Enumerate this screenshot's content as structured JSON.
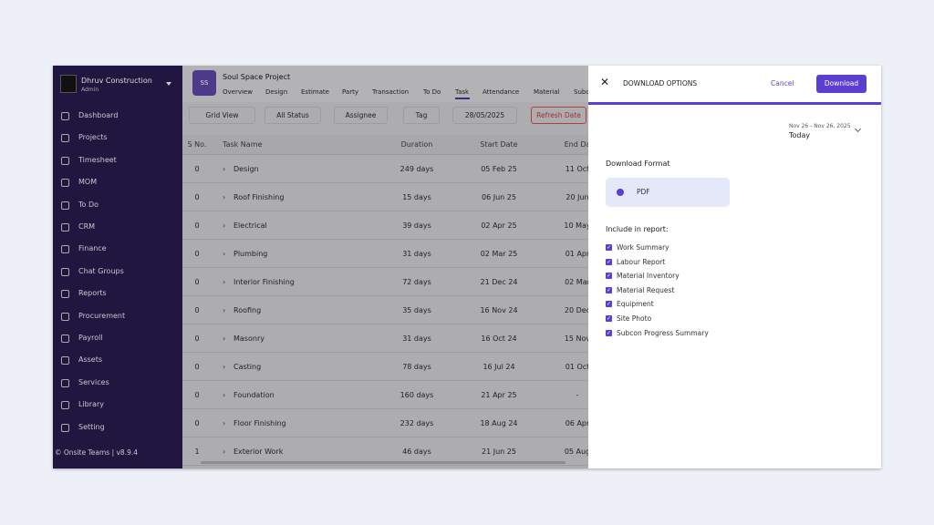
{
  "sidebar": {
    "company": "Dhruv Construction",
    "role": "Admin",
    "menu": [
      "Dashboard",
      "Projects",
      "Timesheet",
      "MOM",
      "To Do",
      "CRM",
      "Finance",
      "Chat Groups",
      "Reports",
      "Procurement",
      "Payroll",
      "Assets",
      "Services",
      "Library",
      "Setting"
    ],
    "footer": "© Onsite Teams | v8.9.4"
  },
  "project": {
    "avatar": "SS",
    "name": "Soul Space Project",
    "tabs": [
      "Overview",
      "Design",
      "Estimate",
      "Party",
      "Transaction",
      "To Do",
      "Task",
      "Attendance",
      "Material",
      "Subc"
    ],
    "toolbar": [
      "Grid View",
      "All Status",
      "Assignee",
      "Tag",
      "28/05/2025",
      "Refresh Date"
    ]
  },
  "table": {
    "headers": [
      "S No.",
      "Task Name",
      "Duration",
      "Start Date",
      "End Da"
    ],
    "rows": [
      [
        "0",
        "Design",
        "249 days",
        "05 Feb 25",
        "11 Oct"
      ],
      [
        "0",
        "Roof Finishing",
        "15 days",
        "06 Jun 25",
        "20 Jun"
      ],
      [
        "0",
        "Electrical",
        "39 days",
        "02 Apr 25",
        "10 May"
      ],
      [
        "0",
        "Plumbing",
        "31 days",
        "02 Mar 25",
        "01 Apr"
      ],
      [
        "0",
        "Interior Finishing",
        "72 days",
        "21 Dec 24",
        "02 Mar"
      ],
      [
        "0",
        "Roofing",
        "35 days",
        "16 Nov 24",
        "20 Dec"
      ],
      [
        "0",
        "Masonry",
        "31 days",
        "16 Oct 24",
        "15 Nov"
      ],
      [
        "0",
        "Casting",
        "78 days",
        "16 Jul 24",
        "01 Oct"
      ],
      [
        "0",
        "Foundation",
        "160 days",
        "21 Apr 25",
        "-"
      ],
      [
        "0",
        "Floor Finishing",
        "232 days",
        "18 Aug 24",
        "06 Apr"
      ],
      [
        "1",
        "Exterior Work",
        "46 days",
        "21 Jun 25",
        "05 Aug"
      ]
    ]
  },
  "panel": {
    "title": "DOWNLOAD OPTIONS",
    "cancel": "Cancel",
    "download": "Download",
    "date_range": "Nov 26 - Nov 26, 2025",
    "date_preset": "Today",
    "format_label": "Download Format",
    "format": "PDF",
    "include_label": "Include in report:",
    "include": [
      "Work Summary",
      "Labour Report",
      "Material Inventory",
      "Material Request",
      "Equipment",
      "Site Photo",
      "Subcon Progress Summary"
    ]
  }
}
